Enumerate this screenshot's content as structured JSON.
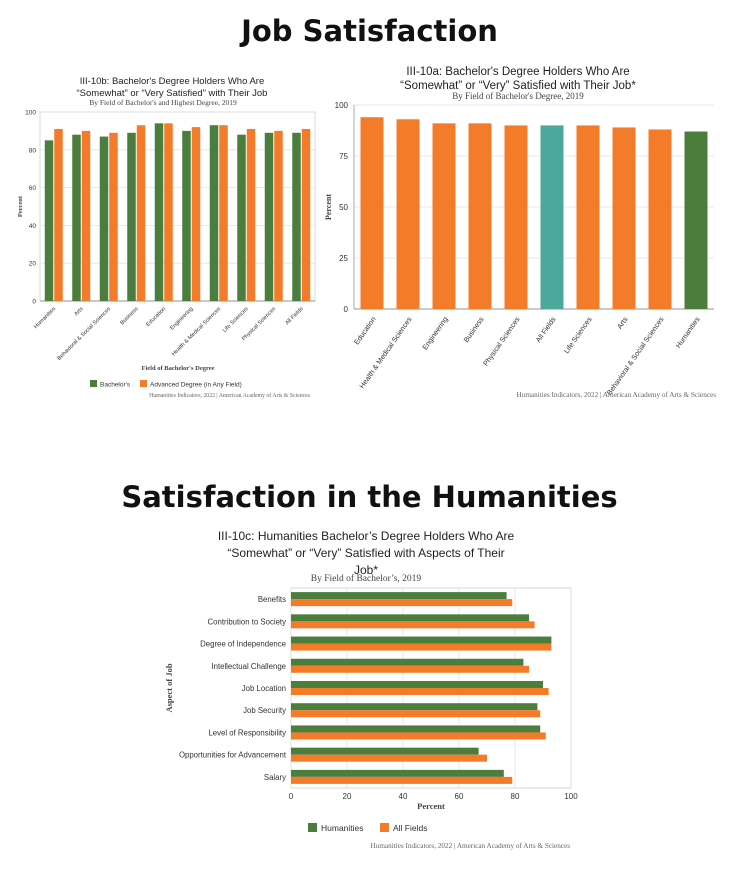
{
  "headings": {
    "top": "Job Satisfaction",
    "bottom": "Satisfaction in the Humanities"
  },
  "colors": {
    "green": "#4b7d3c",
    "orange": "#f47b2a",
    "teal": "#4aa99a",
    "grid": "#e2e2e2"
  },
  "chart_data": [
    {
      "id": "III-10b",
      "type": "bar",
      "title_lines": [
        "III-10b: Bachelor's Degree Holders Who Are",
        "“Somewhat” or “Very Satisfied” with Their Job"
      ],
      "subtitle": "By Field of Bachelor's and Highest Degree, 2019",
      "xlabel": "Field of Bachelor's Degree",
      "ylabel": "Percent",
      "ylim": [
        0,
        100
      ],
      "yticks": [
        0,
        20,
        40,
        60,
        80,
        100
      ],
      "categories": [
        "Humanities",
        "Arts",
        "Behavioral & Social Sciences",
        "Business",
        "Education",
        "Engineering",
        "Health & Medical Sciences",
        "Life Sciences",
        "Physical Sciences",
        "All Fields"
      ],
      "series": [
        {
          "name": "Bachelor's",
          "color": "#4b7d3c",
          "values": [
            85,
            88,
            87,
            89,
            94,
            90,
            93,
            88,
            89,
            89
          ]
        },
        {
          "name": "Advanced Degree (in Any Field)",
          "color": "#f47b2a",
          "values": [
            91,
            90,
            89,
            93,
            94,
            92,
            93,
            91,
            90,
            91
          ]
        }
      ],
      "legend_position": "bottom",
      "grid": true,
      "source": "Humanities Indicators, 2022 | American Academy of Arts & Sciences"
    },
    {
      "id": "III-10a",
      "type": "bar",
      "title_lines": [
        "III-10a: Bachelor's Degree Holders Who Are",
        "“Somewhat” or “Very” Satisfied with Their Job*"
      ],
      "subtitle": "By Field of Bachelor's Degree, 2019",
      "xlabel": "",
      "ylabel": "Percent",
      "ylim": [
        0,
        100
      ],
      "yticks": [
        0,
        25,
        50,
        75,
        100
      ],
      "categories": [
        "Education",
        "Health & Medical Sciences",
        "Engineering",
        "Business",
        "Physical Sciences",
        "All Fields",
        "Life Sciences",
        "Arts",
        "Behavioral & Social Sciences",
        "Humanities"
      ],
      "values": [
        94,
        93,
        91,
        91,
        90,
        90,
        90,
        89,
        88,
        87
      ],
      "bar_colors": [
        "#f47b2a",
        "#f47b2a",
        "#f47b2a",
        "#f47b2a",
        "#f47b2a",
        "#4aa99a",
        "#f47b2a",
        "#f47b2a",
        "#f47b2a",
        "#4b7d3c"
      ],
      "grid": true,
      "source": "Humanities Indicators, 2022 | American Academy of Arts & Sciences"
    },
    {
      "id": "III-10c",
      "type": "bar",
      "orientation": "horizontal",
      "title_lines": [
        "III-10c: Humanities Bachelor’s Degree Holders Who Are",
        "“Somewhat” or “Very” Satisfied with Aspects of Their",
        "Job*"
      ],
      "subtitle": "By Field of Bachelor’s, 2019",
      "xlabel": "Percent",
      "ylabel": "Aspect of Job",
      "xlim": [
        0,
        100
      ],
      "xticks": [
        0,
        20,
        40,
        60,
        80,
        100
      ],
      "categories": [
        "Benefits",
        "Contribution to Society",
        "Degree of Independence",
        "Intellectual Challenge",
        "Job Location",
        "Job Security",
        "Level of Responsibility",
        "Opportunities for Advancement",
        "Salary"
      ],
      "series": [
        {
          "name": "Humanities",
          "color": "#4b7d3c",
          "values": [
            77,
            85,
            93,
            83,
            90,
            88,
            89,
            67,
            76
          ]
        },
        {
          "name": "All Fields",
          "color": "#f47b2a",
          "values": [
            79,
            87,
            93,
            85,
            92,
            89,
            91,
            70,
            79
          ]
        }
      ],
      "legend_position": "bottom",
      "grid": true,
      "source": "Humanities Indicators, 2022 | American Academy of Arts & Sciences"
    }
  ]
}
